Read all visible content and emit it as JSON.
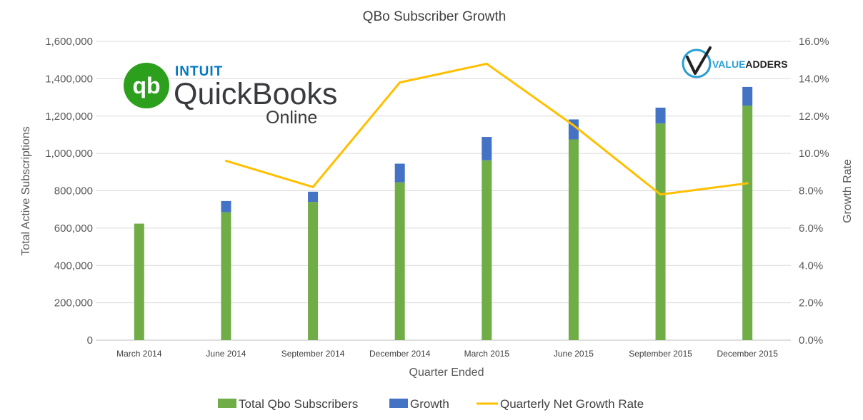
{
  "chart_data": {
    "type": "bar",
    "title": "QBo Subscriber Growth",
    "xlabel": "Quarter Ended",
    "ylabel": "Total Active Subscriptions",
    "y2label": "Growth Rate",
    "categories": [
      "March 2014",
      "June 2014",
      "September 2014",
      "December 2014",
      "March 2015",
      "June 2015",
      "September 2015",
      "December 2015"
    ],
    "ylim": [
      0,
      1600000
    ],
    "yticks": [
      "0",
      "200,000",
      "400,000",
      "600,000",
      "800,000",
      "1,000,000",
      "1,200,000",
      "1,400,000",
      "1,600,000"
    ],
    "y2lim": [
      0,
      16
    ],
    "y2ticks": [
      "0.0%",
      "2.0%",
      "4.0%",
      "6.0%",
      "8.0%",
      "10.0%",
      "12.0%",
      "14.0%",
      "16.0%"
    ],
    "stacked": true,
    "series": [
      {
        "name": "Total Qbo Subscribers",
        "type": "bar",
        "color": "#70ad47",
        "values": [
          624000,
          685000,
          740000,
          845000,
          963000,
          1075000,
          1160000,
          1256000
        ]
      },
      {
        "name": "Growth",
        "type": "bar",
        "color": "#4472c4",
        "values": [
          0,
          60000,
          55000,
          100000,
          125000,
          107000,
          85000,
          100000
        ]
      },
      {
        "name": "Quarterly Net Growth Rate",
        "type": "line",
        "axis": "right",
        "color": "#ffc000",
        "values": [
          null,
          9.6,
          8.2,
          13.8,
          14.8,
          11.5,
          7.8,
          8.4
        ]
      }
    ],
    "grid": true,
    "legend": "bottom"
  },
  "logos": {
    "quickbooks": {
      "brand": "INTUIT",
      "name": "QuickBooks",
      "suffix": "Online",
      "mark": "qb",
      "green": "#2ca01c",
      "blue": "#0077c5"
    },
    "valueadders": {
      "name_a": "VALUE",
      "name_b": "ADDERS",
      "blue": "#2a9fd6"
    }
  }
}
